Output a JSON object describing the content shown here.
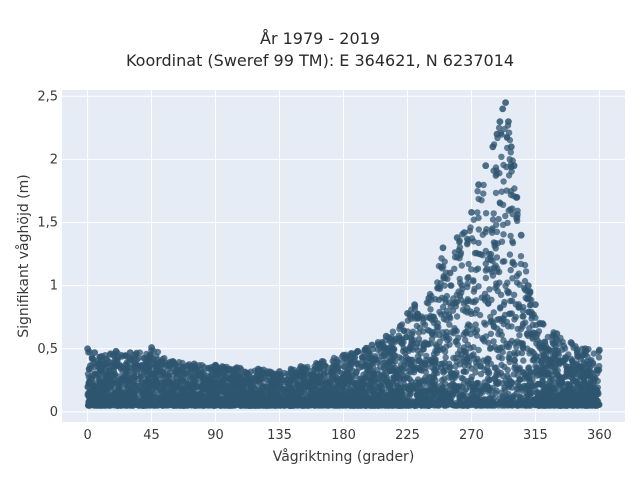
{
  "chart_data": {
    "type": "scatter",
    "title": "År 1979 - 2019",
    "subtitle": "Koordinat (Sweref 99 TM): E 364621, N 6237014",
    "xlabel": "Vågriktning (grader)",
    "ylabel": "Signifikant våghöjd (m)",
    "xlim": [
      -18,
      378
    ],
    "ylim": [
      -0.08,
      2.55
    ],
    "x_ticks": [
      0,
      45,
      90,
      135,
      180,
      225,
      270,
      315,
      360
    ],
    "x_tick_labels": [
      "0",
      "45",
      "90",
      "135",
      "180",
      "225",
      "270",
      "315",
      "360"
    ],
    "y_ticks": [
      0,
      0.5,
      1,
      1.5,
      2,
      2.5
    ],
    "y_tick_labels": [
      "0",
      "0,5",
      "1",
      "1,5",
      "2",
      "2,5"
    ],
    "grid": true,
    "marker_color": "#2f5570",
    "plot_background": "#e5ecf6",
    "x": [
      0,
      5,
      10,
      20,
      30,
      45,
      60,
      75,
      90,
      105,
      120,
      135,
      150,
      165,
      180,
      190,
      200,
      210,
      220,
      225,
      230,
      240,
      250,
      255,
      260,
      265,
      270,
      275,
      280,
      285,
      288,
      290,
      292,
      294,
      296,
      298,
      300,
      302,
      305,
      310,
      315,
      320,
      330,
      340,
      350,
      360
    ],
    "y": [
      0.5,
      0.47,
      0.44,
      0.48,
      0.47,
      0.51,
      0.4,
      0.38,
      0.37,
      0.35,
      0.34,
      0.32,
      0.36,
      0.4,
      0.45,
      0.48,
      0.53,
      0.6,
      0.68,
      0.78,
      0.85,
      0.9,
      1.3,
      1.1,
      1.38,
      1.42,
      1.58,
      1.8,
      1.95,
      2.1,
      2.2,
      2.3,
      2.4,
      2.45,
      2.3,
      2.1,
      1.95,
      1.7,
      1.4,
      1.0,
      0.85,
      0.7,
      0.62,
      0.55,
      0.5,
      0.49
    ]
  }
}
